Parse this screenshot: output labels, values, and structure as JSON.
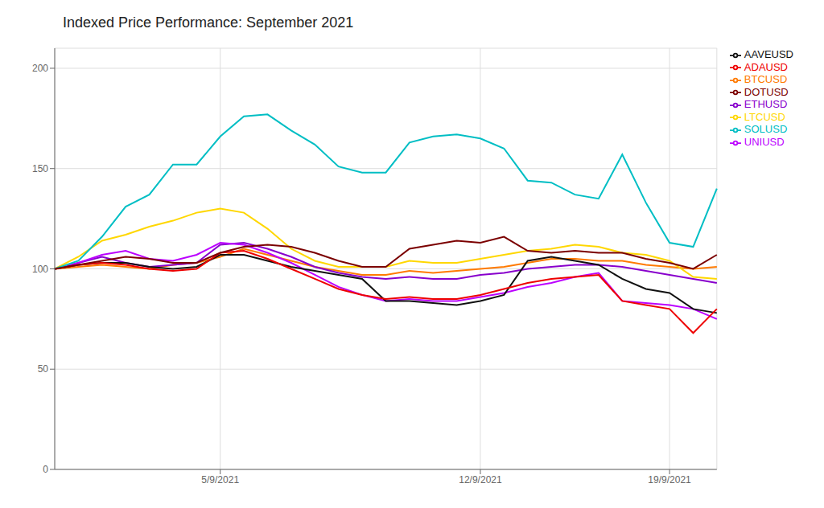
{
  "chart_data": {
    "type": "line",
    "title": "Indexed Price Performance: September 2021",
    "categories": [
      null,
      null,
      null,
      null,
      null,
      null,
      null,
      "5/9/2021",
      null,
      null,
      null,
      null,
      null,
      null,
      null,
      null,
      null,
      null,
      "12/9/2021",
      null,
      null,
      null,
      null,
      null,
      null,
      null,
      "19/9/2021",
      null,
      null
    ],
    "series": [
      {
        "name": "BTCUSD",
        "color": "#FF7A00",
        "values": [
          100,
          101,
          102,
          101,
          100,
          102,
          103,
          106,
          110,
          107,
          104,
          101,
          99,
          97,
          97,
          99,
          98,
          99,
          100,
          101,
          103,
          105,
          105,
          104,
          104,
          102,
          101,
          100,
          101
        ]
      },
      {
        "name": "ETHUSD",
        "color": "#8800CC",
        "values": [
          100,
          103,
          106,
          103,
          101,
          102,
          103,
          112,
          113,
          110,
          106,
          101,
          98,
          96,
          95,
          96,
          95,
          95,
          97,
          98,
          100,
          101,
          102,
          102,
          101,
          99,
          97,
          95,
          93
        ]
      },
      {
        "name": "LTCUSD",
        "color": "#FFD700",
        "values": [
          100,
          106,
          114,
          117,
          121,
          124,
          128,
          130,
          128,
          120,
          110,
          104,
          101,
          101,
          101,
          104,
          103,
          103,
          105,
          107,
          109,
          110,
          112,
          111,
          108,
          107,
          104,
          96,
          95
        ]
      },
      {
        "name": "UNIUSD",
        "color": "#BB00FF",
        "values": [
          100,
          103,
          107,
          109,
          105,
          104,
          107,
          113,
          112,
          108,
          103,
          97,
          91,
          87,
          84,
          85,
          84,
          84,
          86,
          88,
          91,
          93,
          96,
          98,
          84,
          83,
          82,
          80,
          75
        ]
      },
      {
        "name": "AAVEUSD",
        "color": "#111111",
        "values": [
          100,
          102,
          103,
          103,
          101,
          100,
          101,
          107,
          107,
          104,
          101,
          99,
          97,
          95,
          84,
          84,
          83,
          82,
          84,
          87,
          104,
          106,
          104,
          102,
          95,
          90,
          88,
          80,
          78
        ]
      },
      {
        "name": "ADAUSD",
        "color": "#EE0000",
        "values": [
          100,
          102,
          103,
          102,
          100,
          99,
          100,
          108,
          109,
          105,
          100,
          95,
          90,
          87,
          85,
          86,
          85,
          85,
          87,
          90,
          93,
          95,
          96,
          97,
          84,
          82,
          80,
          68,
          80
        ]
      },
      {
        "name": "SOLUSD",
        "color": "#00BEC4",
        "values": [
          100,
          104,
          116,
          131,
          137,
          152,
          152,
          166,
          176,
          177,
          169,
          162,
          151,
          148,
          148,
          163,
          166,
          167,
          165,
          160,
          144,
          143,
          137,
          135,
          157,
          133,
          113,
          111,
          140
        ]
      },
      {
        "name": "DOTUSD",
        "color": "#7B0000",
        "values": [
          100,
          102,
          104,
          106,
          105,
          103,
          103,
          108,
          111,
          112,
          111,
          108,
          104,
          101,
          101,
          110,
          112,
          114,
          113,
          116,
          109,
          108,
          109,
          108,
          108,
          105,
          103,
          100,
          107
        ]
      }
    ],
    "ylim": [
      0,
      210
    ],
    "yticks": [
      0,
      50,
      100,
      150,
      200
    ],
    "grid": true,
    "legend": "right"
  }
}
